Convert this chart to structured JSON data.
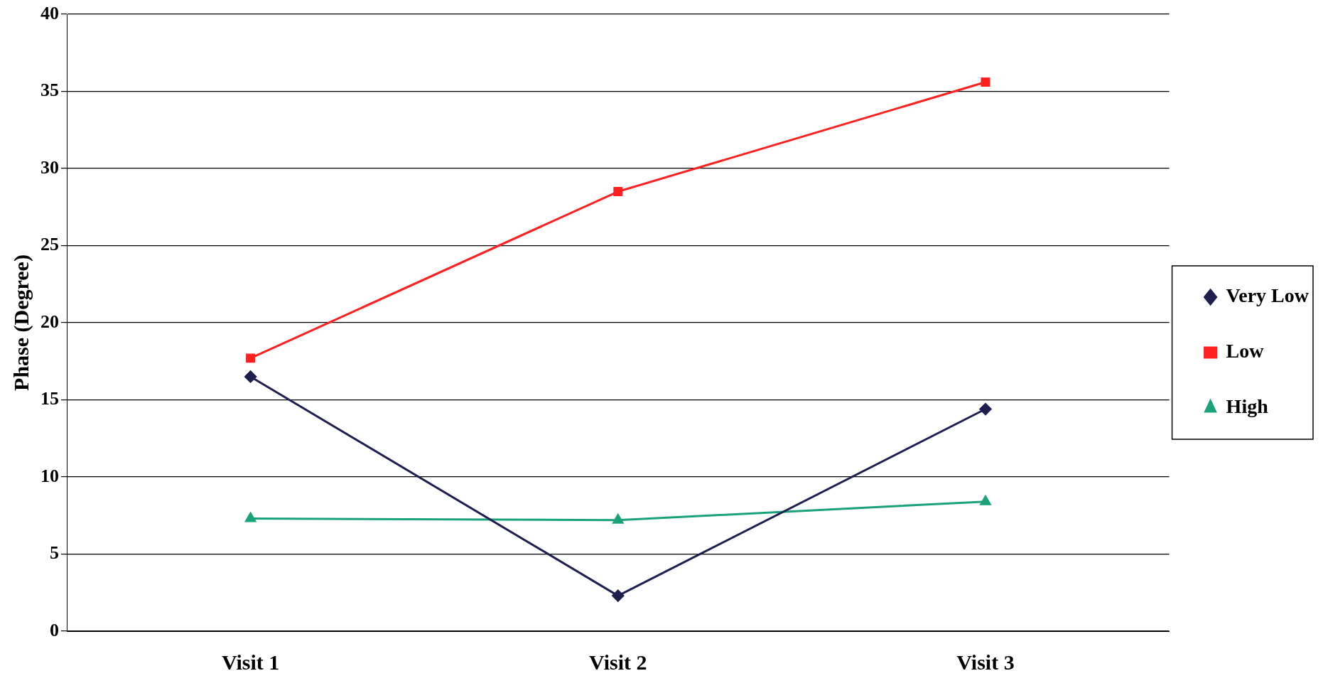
{
  "chart_data": {
    "type": "line",
    "ylabel": "Phase (Degree)",
    "categories": [
      "Visit 1",
      "Visit 2",
      "Visit 3"
    ],
    "series": [
      {
        "name": "Very Low",
        "color": "#1f1f4f",
        "marker": "diamond",
        "values": [
          16.5,
          2.3,
          14.4
        ]
      },
      {
        "name": "Low",
        "color": "#ff2020",
        "marker": "square",
        "values": [
          17.7,
          28.5,
          35.6
        ]
      },
      {
        "name": "High",
        "color": "#1aa37a",
        "marker": "triangle",
        "values": [
          7.3,
          7.2,
          8.4
        ]
      }
    ],
    "ylim": [
      0,
      40
    ],
    "yticks": [
      0,
      5,
      10,
      15,
      20,
      25,
      30,
      35,
      40
    ],
    "grid": "y",
    "legend": "right"
  }
}
